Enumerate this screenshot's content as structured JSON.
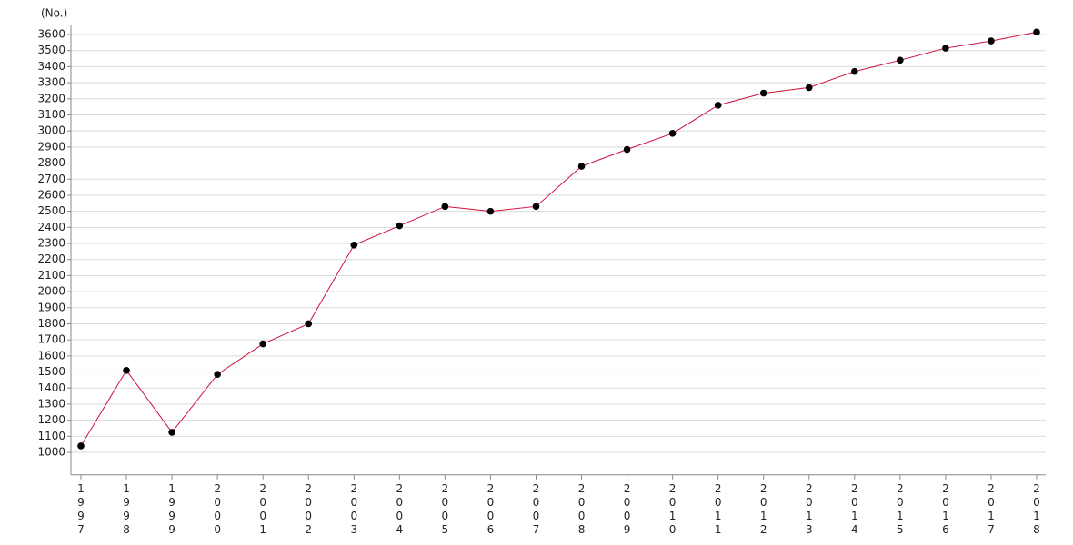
{
  "chart_data": {
    "type": "line",
    "y_axis_label": "(No.)",
    "categories": [
      "1997",
      "1998",
      "1999",
      "2000",
      "2001",
      "2002",
      "2003",
      "2004",
      "2005",
      "2006",
      "2007",
      "2008",
      "2009",
      "2010",
      "2011",
      "2012",
      "2013",
      "2014",
      "2015",
      "2016",
      "2017",
      "2018"
    ],
    "series": [
      {
        "color": "#d0103a",
        "marker_color": "#000000",
        "values": [
          1040,
          1510,
          1125,
          1485,
          1675,
          1800,
          2290,
          2410,
          2530,
          2500,
          2530,
          2780,
          2885,
          2985,
          3160,
          3235,
          3270,
          3370,
          3440,
          3515,
          3560,
          3615
        ]
      }
    ],
    "ylim": [
      860,
      3660
    ],
    "yticks": [
      1000,
      1100,
      1200,
      1300,
      1400,
      1500,
      1600,
      1700,
      1800,
      1900,
      2000,
      2100,
      2200,
      2300,
      2400,
      2500,
      2600,
      2700,
      2800,
      2900,
      3000,
      3100,
      3200,
      3300,
      3400,
      3500,
      3600
    ],
    "grid": true
  }
}
